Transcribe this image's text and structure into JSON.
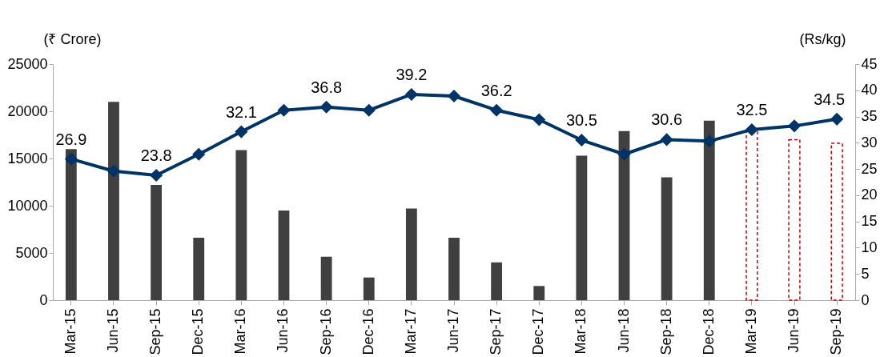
{
  "chart_data": {
    "type": "bar",
    "categories": [
      "Mar-15",
      "Jun-15",
      "Sep-15",
      "Dec-15",
      "Mar-16",
      "Jun-16",
      "Sep-16",
      "Dec-16",
      "Mar-17",
      "Jun-17",
      "Sep-17",
      "Dec-17",
      "Mar-18",
      "Jun-18",
      "Sep-18",
      "Dec-18",
      "Mar-19",
      "Jun-19",
      "Sep-19"
    ],
    "ylabel": "(₹ Crore)",
    "y2label": "(Rs/kg)",
    "ylim": [
      0,
      25000
    ],
    "yticks": [
      0,
      5000,
      10000,
      15000,
      20000,
      25000
    ],
    "y2lim": [
      0,
      45
    ],
    "y2ticks": [
      0,
      5,
      10,
      15,
      20,
      25,
      30,
      35,
      40,
      45
    ],
    "series": [
      {
        "color": "#404040",
        "values": [
          16000,
          21000,
          12200,
          6600,
          15900,
          9500,
          4600,
          2400,
          9700,
          6600,
          4000,
          1500,
          15300,
          17900,
          13000,
          19000,
          null,
          null,
          null
        ]
      },
      {
        "color": "#cc0000",
        "line_style": "dashed",
        "values": [
          null,
          null,
          null,
          null,
          null,
          null,
          null,
          null,
          null,
          null,
          null,
          null,
          null,
          null,
          null,
          null,
          17900,
          17000,
          16600
        ]
      },
      {
        "type": "line",
        "axis": "y2",
        "color": "#003366",
        "marker": "diamond",
        "values": [
          26.9,
          24.6,
          23.8,
          27.8,
          32.1,
          36.2,
          36.8,
          36.2,
          39.2,
          38.9,
          36.2,
          34.4,
          30.5,
          27.8,
          30.6,
          30.3,
          32.5,
          33.2,
          34.5
        ],
        "value_labels": [
          "26.9",
          null,
          "23.8",
          null,
          "32.1",
          null,
          "36.8",
          null,
          "39.2",
          null,
          "36.2",
          null,
          "30.5",
          null,
          "30.6",
          null,
          "32.5",
          null,
          "34.5"
        ]
      }
    ],
    "grid": false
  }
}
